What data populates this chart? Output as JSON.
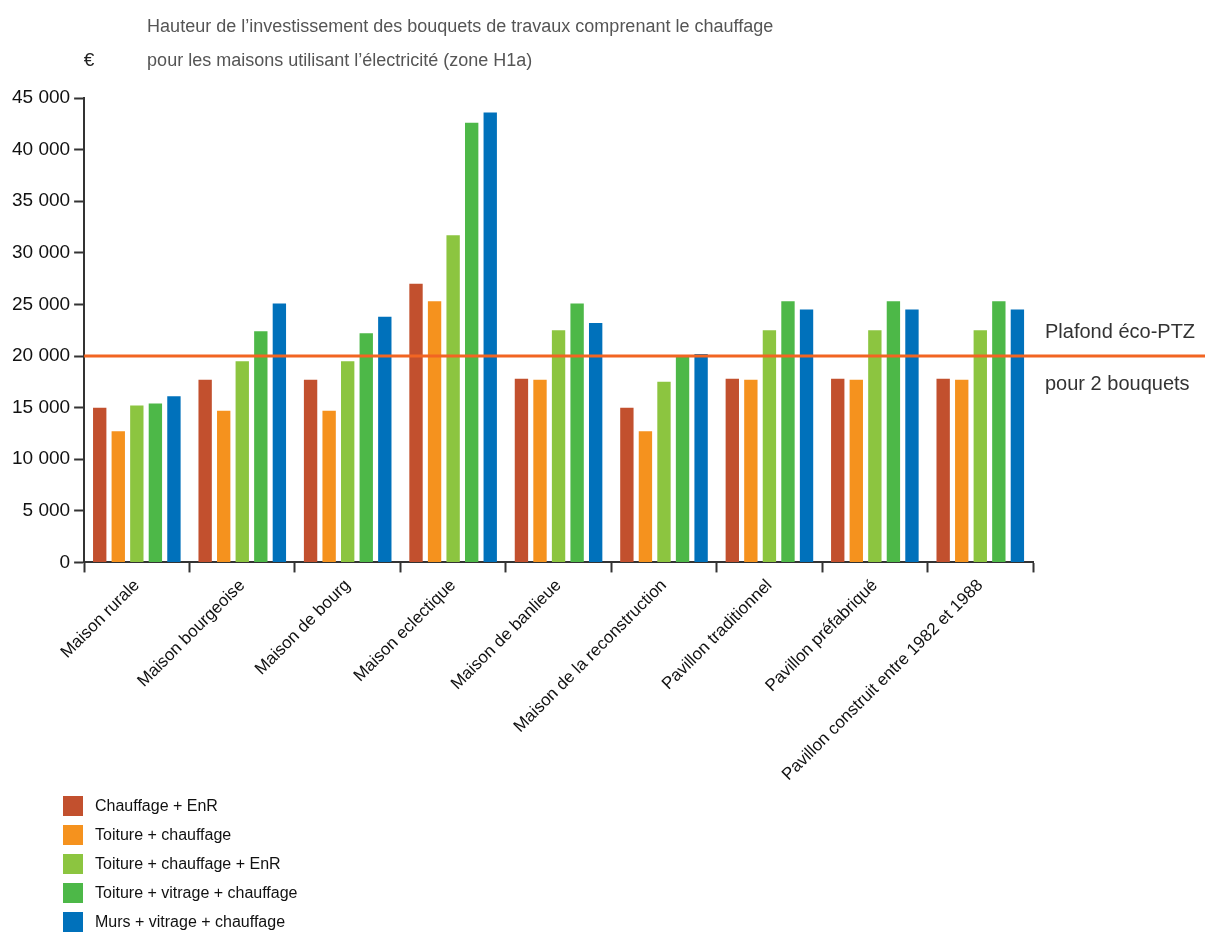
{
  "chart_data": {
    "type": "bar",
    "title": "Hauteur de l’investissement des bouquets de travaux comprenant le chauffage\npour les maisons utilisant l’électricité (zone H1a)",
    "ylabel": "€",
    "categories": [
      "Maison rurale",
      "Maison bourgeoise",
      "Maison de bourg",
      "Maison eclectique",
      "Maison de banlieue",
      "Maison de la reconstruction",
      "Pavillon traditionnel",
      "Pavillon préfabriqué",
      "Pavillon construit entre 1982 et 1988"
    ],
    "series": [
      {
        "name": "Chauffage + EnR",
        "color": "#c2502e",
        "values": [
          15000,
          17700,
          17700,
          27000,
          17800,
          15000,
          17800,
          17800,
          17800
        ]
      },
      {
        "name": "Toiture + chauffage",
        "color": "#f5921e",
        "values": [
          12700,
          14700,
          14700,
          25300,
          17700,
          12700,
          17700,
          17700,
          17700
        ]
      },
      {
        "name": "Toiture + chauffage + EnR",
        "color": "#8cc540",
        "values": [
          15200,
          19500,
          19500,
          31700,
          22500,
          17500,
          22500,
          22500,
          22500
        ]
      },
      {
        "name": "Toiture + vitrage + chauffage",
        "color": "#4db848",
        "values": [
          15400,
          22400,
          22200,
          42600,
          25100,
          20100,
          25300,
          25300,
          25300
        ]
      },
      {
        "name": "Murs + vitrage + chauffage",
        "color": "#0071bb",
        "values": [
          16100,
          25100,
          23800,
          43600,
          23200,
          20200,
          24500,
          24500,
          24500
        ]
      }
    ],
    "ylim": [
      0,
      45000
    ],
    "yticks": [
      0,
      {
        "value": 5000,
        "label": "5 000"
      },
      {
        "value": 10000,
        "label": "10 000"
      },
      {
        "value": 15000,
        "label": "15 000"
      },
      {
        "value": 20000,
        "label": "20 000"
      },
      {
        "value": 25000,
        "label": "25 000"
      },
      {
        "value": 30000,
        "label": "30 000"
      },
      {
        "value": 35000,
        "label": "35 000"
      },
      {
        "value": 40000,
        "label": "40 000"
      },
      {
        "value": 45000,
        "label": "45 000"
      }
    ],
    "ref_lines": [
      {
        "axis": "y",
        "value": 20000,
        "label": "Plafond éco-PTZ\npour 2 bouquets",
        "color": "#f26522"
      }
    ],
    "grid": false,
    "legend": "bottom left"
  }
}
